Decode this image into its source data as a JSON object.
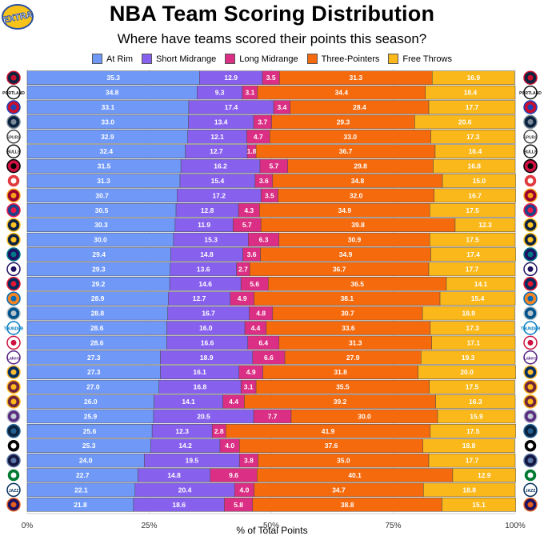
{
  "title": "NBA Team Scoring Distribution",
  "subtitle": "Where have teams scored their points this season?",
  "badge_text": "EXTRA",
  "colors": {
    "At Rim": "#6f98f7",
    "Short Midrange": "#8761ee",
    "Long Midrange": "#da2f84",
    "Three-Pointers": "#f56a0d",
    "Free Throws": "#fbb81a"
  },
  "chart_data": {
    "type": "bar",
    "orientation": "horizontal",
    "stacked": true,
    "xlabel": "% of Total Points",
    "ylabel": "",
    "xlim": [
      0,
      100
    ],
    "xticks": [
      "0%",
      "25%",
      "50%",
      "75%",
      "100%"
    ],
    "grid": true,
    "legend_position": "top",
    "series_names": [
      "At Rim",
      "Short Midrange",
      "Long Midrange",
      "Three-Pointers",
      "Free Throws"
    ],
    "rows": [
      [
        35.3,
        12.9,
        3.5,
        31.3,
        16.9
      ],
      [
        34.8,
        9.3,
        3.1,
        34.4,
        18.4
      ],
      [
        33.1,
        17.4,
        3.4,
        28.4,
        17.7
      ],
      [
        33.0,
        13.4,
        3.7,
        29.3,
        20.6
      ],
      [
        32.9,
        12.1,
        4.7,
        33.0,
        17.3
      ],
      [
        32.4,
        12.7,
        1.8,
        36.7,
        16.4
      ],
      [
        31.5,
        16.2,
        5.7,
        29.8,
        16.8
      ],
      [
        31.3,
        15.4,
        3.6,
        34.8,
        15.0
      ],
      [
        30.7,
        17.2,
        3.5,
        32.0,
        16.7
      ],
      [
        30.5,
        12.8,
        4.3,
        34.9,
        17.5
      ],
      [
        30.3,
        11.9,
        5.7,
        39.8,
        12.3
      ],
      [
        30.0,
        15.3,
        6.3,
        30.9,
        17.5
      ],
      [
        29.4,
        14.8,
        3.6,
        34.9,
        17.4
      ],
      [
        29.3,
        13.6,
        2.7,
        36.7,
        17.7
      ],
      [
        29.2,
        14.6,
        5.6,
        36.5,
        14.1
      ],
      [
        28.9,
        12.7,
        4.9,
        38.1,
        15.4
      ],
      [
        28.8,
        16.7,
        4.8,
        30.7,
        18.9
      ],
      [
        28.6,
        16.0,
        4.4,
        33.6,
        17.3
      ],
      [
        28.6,
        16.6,
        6.4,
        31.3,
        17.1
      ],
      [
        27.3,
        18.9,
        6.6,
        27.9,
        19.3
      ],
      [
        27.3,
        16.1,
        4.9,
        31.8,
        20.0
      ],
      [
        27.0,
        16.8,
        3.1,
        35.5,
        17.5
      ],
      [
        26.0,
        14.1,
        4.4,
        39.2,
        16.3
      ],
      [
        25.9,
        20.5,
        7.7,
        30.0,
        15.9
      ],
      [
        25.6,
        12.3,
        2.8,
        41.9,
        17.5
      ],
      [
        25.3,
        14.2,
        4.0,
        37.6,
        18.8
      ],
      [
        24.0,
        19.5,
        3.8,
        35.0,
        17.7
      ],
      [
        22.7,
        14.8,
        9.6,
        40.1,
        12.9
      ],
      [
        22.1,
        20.4,
        4.0,
        34.7,
        18.8
      ],
      [
        21.8,
        18.6,
        5.8,
        38.8,
        15.1
      ]
    ],
    "team_logos": [
      {
        "text": "",
        "bg": "#0c2340",
        "fg": "#c8102e"
      },
      {
        "text": "PORTLAND",
        "bg": "#ffffff",
        "fg": "#111111"
      },
      {
        "text": "",
        "bg": "#c8102e",
        "fg": "#1d42ba"
      },
      {
        "text": "",
        "bg": "#0c2340",
        "fg": "#7a8a9a"
      },
      {
        "text": "SPURS",
        "bg": "#ffffff",
        "fg": "#444444"
      },
      {
        "text": "BULLS",
        "bg": "#ffffff",
        "fg": "#111111"
      },
      {
        "text": "",
        "bg": "#ce1141",
        "fg": "#000000"
      },
      {
        "text": "",
        "bg": "#e03a3e",
        "fg": "#ffffff"
      },
      {
        "text": "",
        "bg": "#98002e",
        "fg": "#f9a01b"
      },
      {
        "text": "",
        "bg": "#1d428a",
        "fg": "#ed174c"
      },
      {
        "text": "",
        "bg": "#0e2240",
        "fg": "#fec524"
      },
      {
        "text": "",
        "bg": "#0e2240",
        "fg": "#fec524"
      },
      {
        "text": "",
        "bg": "#1d1160",
        "fg": "#00788c"
      },
      {
        "text": "",
        "bg": "#ffffff",
        "fg": "#1d1160"
      },
      {
        "text": "",
        "bg": "#002b5c",
        "fg": "#e31837"
      },
      {
        "text": "",
        "bg": "#f58426",
        "fg": "#006bb6"
      },
      {
        "text": "",
        "bg": "#00538c",
        "fg": "#b8c4ca"
      },
      {
        "text": "THUNDER",
        "bg": "#ffffff",
        "fg": "#007ac1"
      },
      {
        "text": "",
        "bg": "#ffffff",
        "fg": "#ce1141"
      },
      {
        "text": "Lakers",
        "bg": "#ffffff",
        "fg": "#552583"
      },
      {
        "text": "",
        "bg": "#002d62",
        "fg": "#fdbb30"
      },
      {
        "text": "",
        "bg": "#6f263d",
        "fg": "#ffb81c"
      },
      {
        "text": "",
        "bg": "#6f263d",
        "fg": "#ffb81c"
      },
      {
        "text": "",
        "bg": "#5a2d81",
        "fg": "#c4ced4"
      },
      {
        "text": "",
        "bg": "#0c2340",
        "fg": "#236192"
      },
      {
        "text": "",
        "bg": "#000000",
        "fg": "#ffffff"
      },
      {
        "text": "",
        "bg": "#12173f",
        "fg": "#5d76a9"
      },
      {
        "text": "",
        "bg": "#007a33",
        "fg": "#ffffff"
      },
      {
        "text": "JAZZ",
        "bg": "#ffffff",
        "fg": "#002b5c"
      },
      {
        "text": "",
        "bg": "#1d1160",
        "fg": "#e56020"
      }
    ]
  }
}
